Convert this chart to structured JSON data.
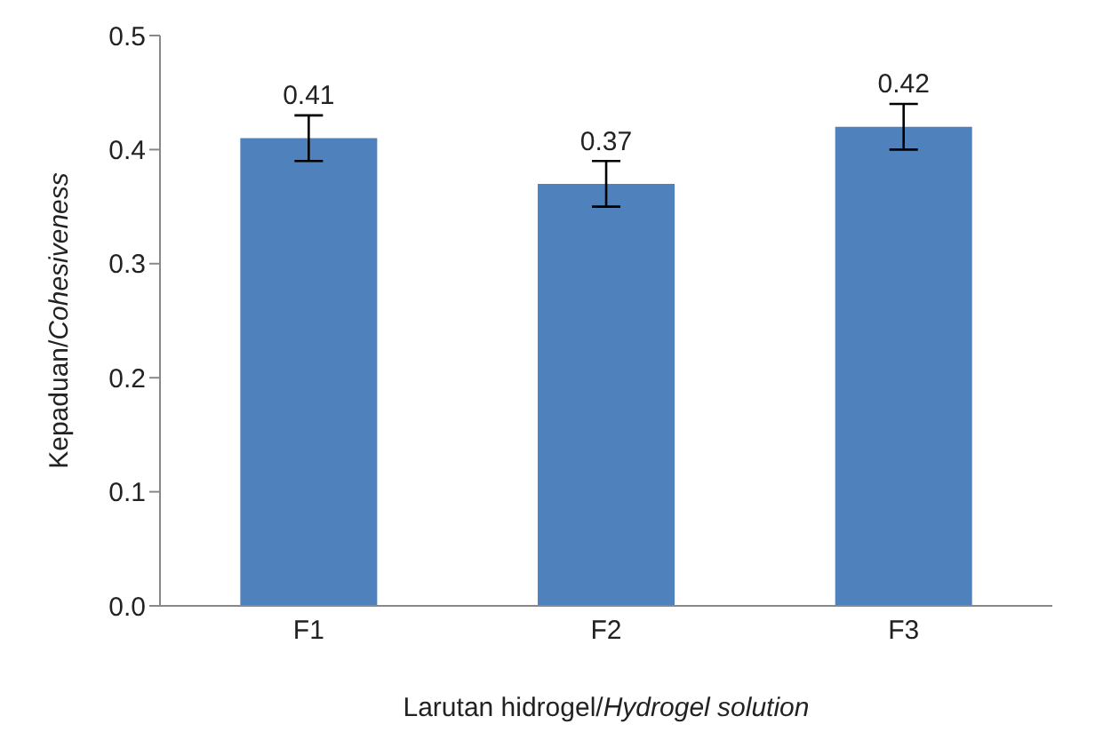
{
  "chart_data": {
    "type": "bar",
    "xlabel": "Larutan hidrogel/Hydrogel solution",
    "ylabel": "Kepaduan/Cohesiveness",
    "categories": [
      "F1",
      "F2",
      "F3"
    ],
    "values": [
      0.41,
      0.37,
      0.42
    ],
    "errors": [
      0.02,
      0.02,
      0.02
    ],
    "color": "#4f81bd",
    "data_labels": true,
    "ylim": [
      0,
      0.5
    ],
    "yticks": [
      {
        "value": 0,
        "label": "0.0"
      },
      0.1,
      0.2,
      0.3,
      0.4,
      0.5
    ]
  }
}
